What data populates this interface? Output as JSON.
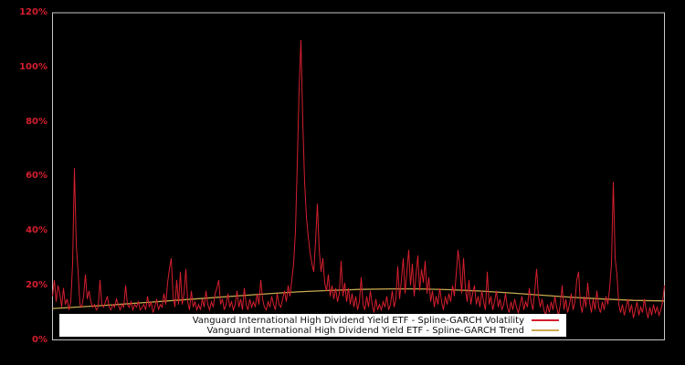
{
  "figure": {
    "background": "#000000",
    "plot_border_color": "#c8c8c8",
    "axis_label_color": "#d41f2e",
    "legend_background": "#ffffff",
    "legend_text_color": "#111111"
  },
  "chart_data": {
    "type": "line",
    "title": "",
    "xlabel": "",
    "ylabel": "",
    "x_tick_labels": [],
    "grid": false,
    "legend_position": "bottom-center",
    "y_axis": {
      "min": 0,
      "max": 120,
      "unit": "%",
      "ticks": [
        {
          "value": 0,
          "label": "0%"
        },
        {
          "value": 20,
          "label": "20%"
        },
        {
          "value": 40,
          "label": "40%"
        },
        {
          "value": 60,
          "label": "60%"
        },
        {
          "value": 80,
          "label": "80%"
        },
        {
          "value": 100,
          "label": "100%"
        },
        {
          "value": 120,
          "label": "120%"
        }
      ]
    },
    "series": [
      {
        "name": "Vanguard International High Dividend Yield ETF - Spline-GARCH Volatility",
        "color": "#d41f2e",
        "style": "jagged",
        "line_width": 1,
        "values_percent": [
          16,
          22,
          14,
          20,
          17,
          12,
          19,
          13,
          15,
          11,
          14,
          28,
          63,
          35,
          25,
          13,
          12,
          16,
          24,
          15,
          18,
          14,
          12,
          13,
          11,
          12,
          22,
          13,
          12,
          14,
          16,
          12,
          11,
          13,
          12,
          15,
          13,
          11,
          13,
          12,
          20,
          13,
          12,
          14,
          11,
          13,
          12,
          14,
          11,
          12,
          13,
          11,
          16,
          12,
          14,
          10,
          12,
          15,
          11,
          13,
          12,
          17,
          13,
          21,
          26,
          30,
          16,
          12,
          22,
          13,
          25,
          13,
          17,
          26,
          14,
          11,
          18,
          12,
          14,
          11,
          13,
          11,
          15,
          12,
          18,
          13,
          11,
          14,
          12,
          17,
          19,
          22,
          13,
          15,
          11,
          13,
          17,
          12,
          14,
          11,
          13,
          18,
          12,
          15,
          11,
          19,
          13,
          11,
          15,
          12,
          14,
          12,
          17,
          13,
          22,
          15,
          12,
          11,
          14,
          12,
          16,
          13,
          11,
          17,
          13,
          12,
          15,
          18,
          14,
          20,
          16,
          22,
          28,
          40,
          65,
          92,
          110,
          80,
          58,
          45,
          38,
          32,
          28,
          25,
          36,
          50,
          33,
          25,
          30,
          21,
          18,
          24,
          16,
          20,
          15,
          19,
          14,
          17,
          29,
          16,
          21,
          14,
          19,
          13,
          17,
          12,
          16,
          11,
          14,
          23,
          13,
          11,
          16,
          12,
          18,
          13,
          10,
          15,
          11,
          13,
          11,
          14,
          12,
          16,
          11,
          13,
          18,
          12,
          15,
          27,
          15,
          22,
          30,
          17,
          25,
          33,
          20,
          28,
          16,
          24,
          31,
          18,
          26,
          21,
          29,
          17,
          23,
          14,
          18,
          12,
          16,
          13,
          19,
          14,
          11,
          16,
          13,
          17,
          14,
          20,
          16,
          24,
          33,
          27,
          17,
          30,
          19,
          14,
          22,
          13,
          17,
          20,
          13,
          16,
          12,
          18,
          14,
          11,
          25,
          13,
          16,
          11,
          14,
          18,
          12,
          15,
          11,
          13,
          17,
          12,
          10,
          14,
          11,
          15,
          12,
          10,
          13,
          16,
          11,
          14,
          12,
          19,
          14,
          11,
          18,
          26,
          16,
          12,
          15,
          11,
          9,
          13,
          10,
          14,
          11,
          16,
          12,
          9,
          13,
          20,
          11,
          15,
          10,
          13,
          17,
          11,
          14,
          22,
          25,
          13,
          10,
          16,
          12,
          21,
          14,
          10,
          15,
          11,
          18,
          12,
          10,
          14,
          11,
          16,
          13,
          19,
          28,
          58,
          30,
          24,
          13,
          10,
          13,
          9,
          12,
          15,
          10,
          13,
          8,
          11,
          14,
          9,
          12,
          10,
          15,
          11,
          8,
          12,
          9,
          13,
          10,
          12,
          9,
          11,
          14,
          20
        ]
      },
      {
        "name": "Vanguard International High Dividend Yield ETF - Spline-GARCH Trend",
        "color": "#c9a94f",
        "style": "smooth",
        "line_width": 1.3,
        "values_percent": [
          11.5,
          12.2,
          12.9,
          13.7,
          14.5,
          15.3,
          16.1,
          16.9,
          17.6,
          18.1,
          18.5,
          18.7,
          18.7,
          18.4,
          17.9,
          17.2,
          16.4,
          15.6,
          15.0,
          14.5,
          14.3
        ]
      }
    ]
  }
}
